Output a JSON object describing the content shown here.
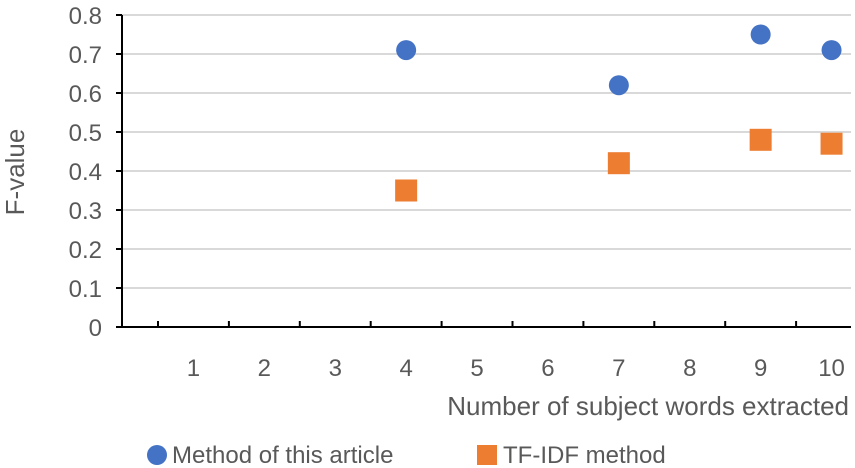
{
  "chart_data": {
    "type": "scatter",
    "title": "",
    "xlabel": "Number of subject words extracted",
    "ylabel": "F-value",
    "x_categories": [
      "1",
      "2",
      "3",
      "4",
      "5",
      "6",
      "7",
      "8",
      "9",
      "10"
    ],
    "ylim": [
      0,
      0.8
    ],
    "y_ticks": [
      "0",
      "0.1",
      "0.2",
      "0.3",
      "0.4",
      "0.5",
      "0.6",
      "0.7",
      "0.8"
    ],
    "grid": true,
    "legend_position": "bottom",
    "series": [
      {
        "name": "Method of this article",
        "marker": "circle",
        "color": "#4472C4",
        "points": [
          {
            "x": "4",
            "y": 0.71
          },
          {
            "x": "7",
            "y": 0.62
          },
          {
            "x": "9",
            "y": 0.75
          },
          {
            "x": "10",
            "y": 0.71
          }
        ]
      },
      {
        "name": "TF-IDF method",
        "marker": "square",
        "color": "#ED7D31",
        "points": [
          {
            "x": "4",
            "y": 0.35
          },
          {
            "x": "7",
            "y": 0.42
          },
          {
            "x": "9",
            "y": 0.48
          },
          {
            "x": "10",
            "y": 0.47
          }
        ]
      }
    ]
  }
}
